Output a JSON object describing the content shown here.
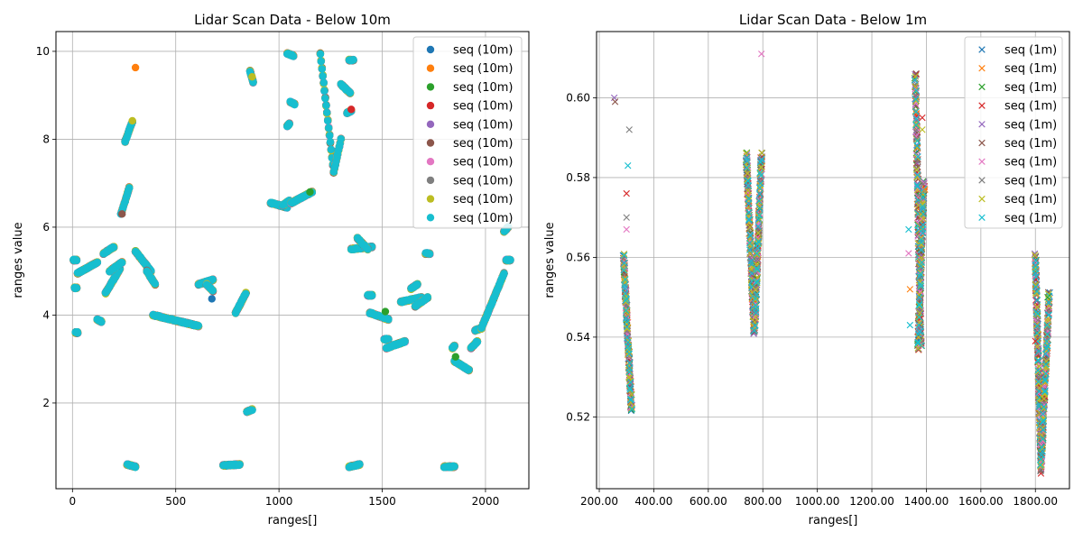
{
  "figure": {
    "background": "#ffffff"
  },
  "colors": [
    "#1f77b4",
    "#ff7f0e",
    "#2ca02c",
    "#d62728",
    "#9467bd",
    "#8c564b",
    "#e377c2",
    "#7f7f7f",
    "#bcbd22",
    "#17becf"
  ],
  "chart_data": [
    {
      "type": "scatter",
      "title": "Lidar Scan Data - Below 10m",
      "xlabel": "ranges[]",
      "ylabel": "ranges value",
      "xlim": [
        -80,
        2210
      ],
      "ylim": [
        0.05,
        10.45
      ],
      "xticks": [
        0,
        500,
        1000,
        1500,
        2000
      ],
      "yticks": [
        2,
        4,
        6,
        8,
        10
      ],
      "grid": true,
      "marker": "o",
      "legend": {
        "position": "top-right",
        "entries": [
          "seq (10m)",
          "seq (10m)",
          "seq (10m)",
          "seq (10m)",
          "seq (10m)",
          "seq (10m)",
          "seq (10m)",
          "seq (10m)",
          "seq (10m)",
          "seq (10m)"
        ]
      },
      "segments": [
        {
          "x": [
            5,
            20
          ],
          "y": [
            5.25,
            5.25
          ]
        },
        {
          "x": [
            10,
            20
          ],
          "y": [
            4.62,
            4.62
          ]
        },
        {
          "x": [
            15,
            25
          ],
          "y": [
            3.6,
            3.6
          ]
        },
        {
          "x": [
            25,
            120
          ],
          "y": [
            4.95,
            5.2
          ]
        },
        {
          "x": [
            120,
            140
          ],
          "y": [
            3.9,
            3.85
          ]
        },
        {
          "x": [
            150,
            200
          ],
          "y": [
            5.4,
            5.55
          ]
        },
        {
          "x": [
            160,
            230
          ],
          "y": [
            4.5,
            5.05
          ]
        },
        {
          "x": [
            180,
            240
          ],
          "y": [
            5.0,
            5.2
          ]
        },
        {
          "x": [
            235,
            275
          ],
          "y": [
            6.3,
            6.9
          ]
        },
        {
          "x": [
            255,
            290
          ],
          "y": [
            7.95,
            8.4
          ]
        },
        {
          "x": [
            265,
            305
          ],
          "y": [
            0.6,
            0.55
          ]
        },
        {
          "x": [
            305,
            380
          ],
          "y": [
            5.45,
            5.0
          ]
        },
        {
          "x": [
            360,
            400
          ],
          "y": [
            5.0,
            4.7
          ]
        },
        {
          "x": [
            390,
            610
          ],
          "y": [
            4.0,
            3.75
          ]
        },
        {
          "x": [
            610,
            680
          ],
          "y": [
            4.7,
            4.8
          ]
        },
        {
          "x": [
            650,
            680
          ],
          "y": [
            4.7,
            4.55
          ]
        },
        {
          "x": [
            730,
            810
          ],
          "y": [
            0.58,
            0.6
          ]
        },
        {
          "x": [
            790,
            840
          ],
          "y": [
            4.05,
            4.5
          ]
        },
        {
          "x": [
            845,
            870
          ],
          "y": [
            1.8,
            1.85
          ]
        },
        {
          "x": [
            860,
            875
          ],
          "y": [
            9.55,
            9.3
          ]
        },
        {
          "x": [
            960,
            1040
          ],
          "y": [
            6.55,
            6.45
          ]
        },
        {
          "x": [
            1020,
            1050
          ],
          "y": [
            6.5,
            6.6
          ]
        },
        {
          "x": [
            1040,
            1050
          ],
          "y": [
            8.3,
            8.35
          ]
        },
        {
          "x": [
            1040,
            1070
          ],
          "y": [
            9.95,
            9.9
          ]
        },
        {
          "x": [
            1055,
            1075
          ],
          "y": [
            8.85,
            8.8
          ]
        },
        {
          "x": [
            1060,
            1160
          ],
          "y": [
            6.55,
            6.8
          ]
        },
        {
          "x": [
            1200,
            1265
          ],
          "y": [
            9.95,
            7.25
          ]
        },
        {
          "x": [
            1265,
            1300
          ],
          "y": [
            7.25,
            8.0
          ]
        },
        {
          "x": [
            1300,
            1345
          ],
          "y": [
            9.25,
            9.05
          ]
        },
        {
          "x": [
            1330,
            1350
          ],
          "y": [
            8.6,
            8.65
          ]
        },
        {
          "x": [
            1340,
            1360
          ],
          "y": [
            9.8,
            9.8
          ]
        },
        {
          "x": [
            1340,
            1390
          ],
          "y": [
            0.55,
            0.6
          ]
        },
        {
          "x": [
            1350,
            1450
          ],
          "y": [
            5.5,
            5.55
          ]
        },
        {
          "x": [
            1380,
            1430
          ],
          "y": [
            5.75,
            5.5
          ]
        },
        {
          "x": [
            1430,
            1450
          ],
          "y": [
            4.45,
            4.45
          ]
        },
        {
          "x": [
            1440,
            1530
          ],
          "y": [
            4.05,
            3.9
          ]
        },
        {
          "x": [
            1510,
            1530
          ],
          "y": [
            3.45,
            3.45
          ]
        },
        {
          "x": [
            1520,
            1610
          ],
          "y": [
            3.25,
            3.4
          ]
        },
        {
          "x": [
            1590,
            1690
          ],
          "y": [
            4.3,
            4.4
          ]
        },
        {
          "x": [
            1640,
            1670
          ],
          "y": [
            4.6,
            4.7
          ]
        },
        {
          "x": [
            1660,
            1720
          ],
          "y": [
            4.2,
            4.4
          ]
        },
        {
          "x": [
            1710,
            1730
          ],
          "y": [
            5.4,
            5.4
          ]
        },
        {
          "x": [
            1800,
            1850
          ],
          "y": [
            0.55,
            0.55
          ]
        },
        {
          "x": [
            1840,
            1850
          ],
          "y": [
            3.25,
            3.3
          ]
        },
        {
          "x": [
            1850,
            1920
          ],
          "y": [
            2.95,
            2.75
          ]
        },
        {
          "x": [
            1930,
            1960
          ],
          "y": [
            3.25,
            3.4
          ]
        },
        {
          "x": [
            1950,
            1980
          ],
          "y": [
            3.65,
            3.7
          ]
        },
        {
          "x": [
            1980,
            2090
          ],
          "y": [
            3.7,
            4.95
          ]
        },
        {
          "x": [
            2090,
            2110
          ],
          "y": [
            5.9,
            6.0
          ]
        },
        {
          "x": [
            2100,
            2120
          ],
          "y": [
            5.25,
            5.25
          ]
        }
      ],
      "extras": [
        {
          "x": 305,
          "y": 9.63,
          "series": 1
        },
        {
          "x": 675,
          "y": 4.37,
          "series": 0
        },
        {
          "x": 1515,
          "y": 4.08,
          "series": 2
        },
        {
          "x": 1855,
          "y": 3.05,
          "series": 2
        },
        {
          "x": 240,
          "y": 6.3,
          "series": 5
        },
        {
          "x": 1150,
          "y": 6.8,
          "series": 2
        },
        {
          "x": 870,
          "y": 9.42,
          "series": 8
        },
        {
          "x": 290,
          "y": 8.42,
          "series": 8
        },
        {
          "x": 1350,
          "y": 8.68,
          "series": 3
        }
      ]
    },
    {
      "type": "scatter",
      "title": "Lidar Scan Data - Below 1m",
      "xlabel": "ranges[]",
      "ylabel": "ranges value",
      "xlim": [
        190,
        1925
      ],
      "ylim": [
        0.502,
        0.6166
      ],
      "xticks": [
        200,
        400,
        600,
        800,
        1000,
        1200,
        1400,
        1600,
        1800
      ],
      "yticks": [
        0.52,
        0.54,
        0.56,
        0.58,
        0.6
      ],
      "grid": true,
      "marker": "x",
      "legend": {
        "position": "top-right",
        "entries": [
          "seq (1m)",
          "seq (1m)",
          "seq (1m)",
          "seq (1m)",
          "seq (1m)",
          "seq (1m)",
          "seq (1m)",
          "seq (1m)",
          "seq (1m)",
          "seq (1m)"
        ]
      },
      "segments": [
        {
          "x": [
            290,
            318
          ],
          "y": [
            0.56,
            0.522
          ]
        },
        {
          "x": [
            740,
            768
          ],
          "y": [
            0.585,
            0.542
          ]
        },
        {
          "x": [
            770,
            795
          ],
          "y": [
            0.542,
            0.585
          ]
        },
        {
          "x": [
            1360,
            1380
          ],
          "y": [
            0.605,
            0.538
          ]
        },
        {
          "x": [
            1370,
            1390
          ],
          "y": [
            0.538,
            0.578
          ]
        },
        {
          "x": [
            1800,
            1820
          ],
          "y": [
            0.56,
            0.51
          ]
        },
        {
          "x": [
            1820,
            1850
          ],
          "y": [
            0.507,
            0.55
          ]
        }
      ],
      "extras": [
        {
          "x": 255,
          "y": 0.6,
          "series": 4
        },
        {
          "x": 258,
          "y": 0.599,
          "series": 5
        },
        {
          "x": 310,
          "y": 0.592,
          "series": 7
        },
        {
          "x": 305,
          "y": 0.583,
          "series": 9
        },
        {
          "x": 300,
          "y": 0.576,
          "series": 3
        },
        {
          "x": 300,
          "y": 0.57,
          "series": 7
        },
        {
          "x": 300,
          "y": 0.567,
          "series": 6
        },
        {
          "x": 795,
          "y": 0.611,
          "series": 6
        },
        {
          "x": 1335,
          "y": 0.567,
          "series": 9
        },
        {
          "x": 1335,
          "y": 0.561,
          "series": 6
        },
        {
          "x": 1340,
          "y": 0.552,
          "series": 1
        },
        {
          "x": 1340,
          "y": 0.543,
          "series": 9
        },
        {
          "x": 1385,
          "y": 0.595,
          "series": 3
        },
        {
          "x": 1385,
          "y": 0.592,
          "series": 8
        },
        {
          "x": 1395,
          "y": 0.577,
          "series": 1
        },
        {
          "x": 1800,
          "y": 0.556,
          "series": 9
        },
        {
          "x": 1800,
          "y": 0.539,
          "series": 3
        },
        {
          "x": 1845,
          "y": 0.55,
          "series": 2
        }
      ]
    }
  ]
}
